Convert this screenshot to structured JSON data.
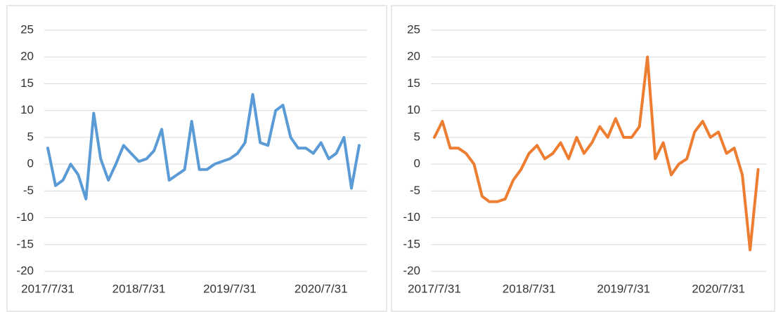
{
  "chart_data": [
    {
      "type": "line",
      "x": [
        "2017/7/31",
        "2017/8/31",
        "2017/9/30",
        "2017/10/31",
        "2017/11/30",
        "2017/12/31",
        "2018/1/31",
        "2018/2/28",
        "2018/3/31",
        "2018/4/30",
        "2018/5/31",
        "2018/6/30",
        "2018/7/31",
        "2018/8/31",
        "2018/9/30",
        "2018/10/31",
        "2018/11/30",
        "2018/12/31",
        "2019/1/31",
        "2019/2/28",
        "2019/3/31",
        "2019/4/30",
        "2019/5/31",
        "2019/6/30",
        "2019/7/31",
        "2019/8/31",
        "2019/9/30",
        "2019/10/31",
        "2019/11/30",
        "2019/12/31",
        "2020/1/31",
        "2020/2/29",
        "2020/3/31",
        "2020/4/30",
        "2020/5/31",
        "2020/6/30",
        "2020/7/31",
        "2020/8/31",
        "2020/9/30",
        "2020/10/31",
        "2020/11/30",
        "2020/12/31"
      ],
      "series": [
        {
          "color": "#5b9bd5",
          "values": [
            3,
            -4,
            -3,
            0,
            -2,
            -6.5,
            9.5,
            1,
            -3,
            0,
            3.5,
            2,
            0.5,
            1,
            2.5,
            6.5,
            -3,
            -2,
            -1,
            8,
            -1,
            -1,
            0,
            0.5,
            1,
            2,
            4,
            13,
            4,
            3.5,
            10,
            11,
            5,
            3,
            3,
            2,
            4,
            1,
            2,
            5,
            -4.5,
            3.5
          ]
        }
      ],
      "xlim": [
        "2017/7/31",
        "2021/1/31"
      ],
      "xticks": [
        "2017/7/31",
        "2018/7/31",
        "2019/7/31",
        "2020/7/31"
      ],
      "ylim": [
        -20,
        25
      ],
      "yticks": [
        -20,
        -15,
        -10,
        -5,
        0,
        5,
        10,
        15,
        20,
        25
      ],
      "grid": true
    },
    {
      "type": "line",
      "x": [
        "2017/7/31",
        "2017/8/31",
        "2017/9/30",
        "2017/10/31",
        "2017/11/30",
        "2017/12/31",
        "2018/1/31",
        "2018/2/28",
        "2018/3/31",
        "2018/4/30",
        "2018/5/31",
        "2018/6/30",
        "2018/7/31",
        "2018/8/31",
        "2018/9/30",
        "2018/10/31",
        "2018/11/30",
        "2018/12/31",
        "2019/1/31",
        "2019/2/28",
        "2019/3/31",
        "2019/4/30",
        "2019/5/31",
        "2019/6/30",
        "2019/7/31",
        "2019/8/31",
        "2019/9/30",
        "2019/10/31",
        "2019/11/30",
        "2019/12/31",
        "2020/1/31",
        "2020/2/29",
        "2020/3/31",
        "2020/4/30",
        "2020/5/31",
        "2020/6/30",
        "2020/7/31",
        "2020/8/31",
        "2020/9/30",
        "2020/10/31",
        "2020/11/30",
        "2020/12/31"
      ],
      "series": [
        {
          "color": "#ed7d31",
          "values": [
            5,
            8,
            3,
            3,
            2,
            0,
            -6,
            -7,
            -7,
            -6.5,
            -3,
            -1,
            2,
            3.5,
            1,
            2,
            4,
            1,
            5,
            2,
            4,
            7,
            5,
            8.5,
            5,
            5,
            7,
            20,
            1,
            4,
            -2,
            0,
            1,
            6,
            8,
            5,
            6,
            2,
            3,
            -2,
            -16,
            -1
          ]
        }
      ],
      "xlim": [
        "2017/7/31",
        "2021/1/31"
      ],
      "xticks": [
        "2017/7/31",
        "2018/7/31",
        "2019/7/31",
        "2020/7/31"
      ],
      "ylim": [
        -20,
        25
      ],
      "yticks": [
        -20,
        -15,
        -10,
        -5,
        0,
        5,
        10,
        15,
        20,
        25
      ],
      "grid": true
    }
  ]
}
